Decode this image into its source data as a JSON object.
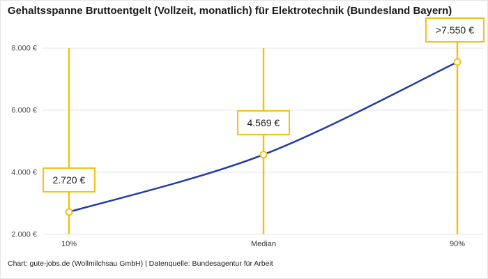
{
  "title": "Gehaltsspanne Bruttoentgelt (Vollzeit, monatlich) für Elektrotechnik (Bundesland Bayern)",
  "footer": "Chart: gute-jobs.de (Wollmilchsau GmbH) | Datenquelle: Bundesagentur für Arbeit",
  "colors": {
    "accent": "#F3C216",
    "line": "#1F3BA8",
    "grid": "#e4e4e4",
    "axis_text": "#4a4a4a",
    "text": "#1a1a1a"
  },
  "chart_data": {
    "type": "line",
    "title": "Gehaltsspanne Bruttoentgelt (Vollzeit, monatlich) für Elektrotechnik (Bundesland Bayern)",
    "categories": [
      "10%",
      "Median",
      "90%"
    ],
    "values": [
      2720,
      4569,
      7550
    ],
    "annotations": [
      "2.720 €",
      "4.569 €",
      ">7.550 €"
    ],
    "y_ticks": [
      8000,
      6000,
      4000,
      2000
    ],
    "y_tick_labels": [
      "8.000 €",
      "6.000 €",
      "4.000 €",
      "2.000 €"
    ],
    "ylim": [
      2000,
      8000
    ],
    "xlabel": "",
    "ylabel": "",
    "grid": "horizontal",
    "legend": "none",
    "source_note": "Chart: gute-jobs.de (Wollmilchsau GmbH) | Datenquelle: Bundesagentur für Arbeit"
  }
}
